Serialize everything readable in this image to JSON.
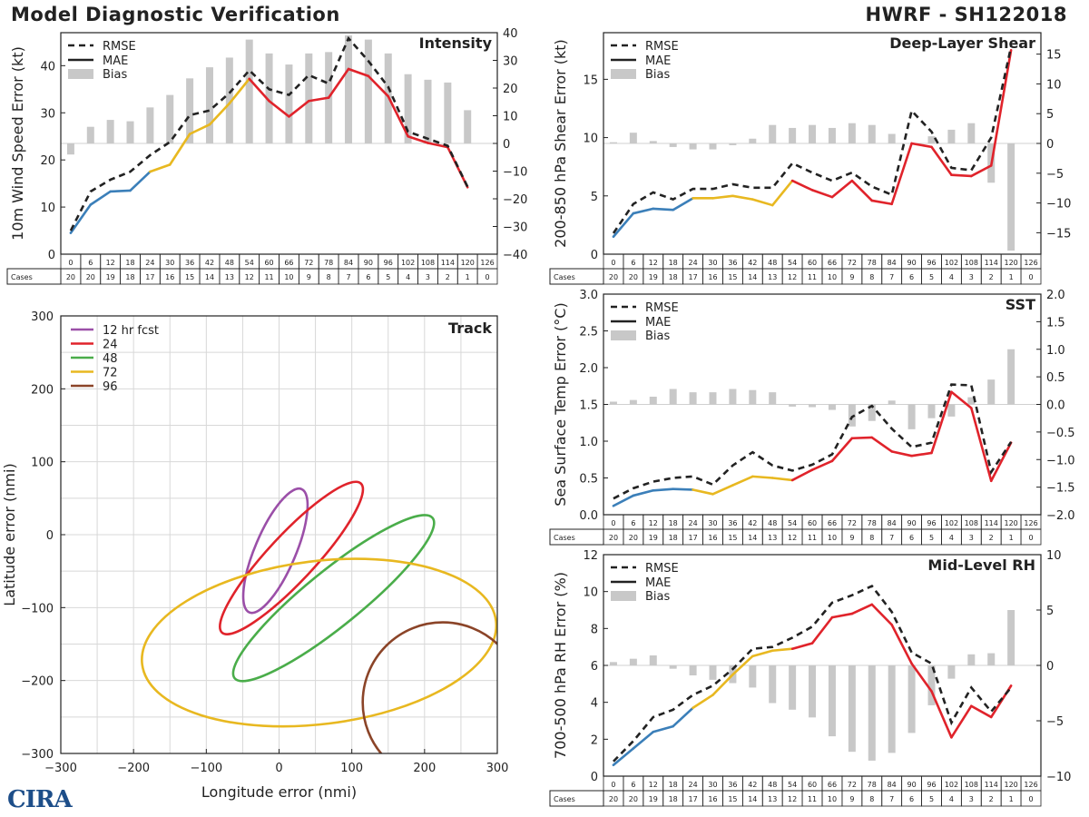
{
  "header": {
    "left": "Model Diagnostic Verification",
    "right": "HWRF - SH122018"
  },
  "logo": {
    "text": "CIRA"
  },
  "legend": {
    "rmse": "RMSE",
    "mae": "MAE",
    "bias": "Bias"
  },
  "cases_label": "Cases",
  "colors": {
    "blue": "#3b7fb9",
    "yellow": "#e8b820",
    "red": "#e0232b",
    "dash": "#222222",
    "bias": "#c8c8c8",
    "c12": "#9b4fa8",
    "c24": "#e0232b",
    "c48": "#4aad4a",
    "c72": "#e8b820",
    "c96": "#8b4428"
  },
  "chart_data": [
    {
      "id": "intensity",
      "type": "line+bar",
      "title": "Intensity",
      "ylabel": "10m Wind Speed Error (kt)",
      "leads": [
        "0",
        "6",
        "12",
        "18",
        "24",
        "30",
        "36",
        "42",
        "48",
        "54",
        "60",
        "66",
        "72",
        "78",
        "84",
        "90",
        "96",
        "102",
        "108",
        "114",
        "120",
        "126"
      ],
      "cases": [
        "20",
        "20",
        "19",
        "18",
        "17",
        "16",
        "15",
        "14",
        "13",
        "12",
        "11",
        "10",
        "9",
        "8",
        "7",
        "6",
        "5",
        "4",
        "3",
        "2",
        "1",
        "0"
      ],
      "ylim": [
        0,
        47
      ],
      "yticks": [
        "0",
        "10",
        "20",
        "30",
        "40"
      ],
      "y2lim": [
        -40,
        40
      ],
      "y2ticks": [
        "−40",
        "−30",
        "−20",
        "−10",
        "0",
        "10",
        "20",
        "30",
        "40"
      ],
      "y2vals": [
        -40,
        -30,
        -20,
        -10,
        0,
        10,
        20,
        30,
        40
      ],
      "mae": [
        4.5,
        10.5,
        13.3,
        13.5,
        17.5,
        19.0,
        25.5,
        27.5,
        32.0,
        37.2,
        32.5,
        29.2,
        32.5,
        33.2,
        39.3,
        37.8,
        33.5,
        25.0,
        23.6,
        22.7,
        14.2,
        null
      ],
      "rmse": [
        5.0,
        13.3,
        15.8,
        17.5,
        21.0,
        23.8,
        29.5,
        30.5,
        34.2,
        39.0,
        35.0,
        33.8,
        38.0,
        36.2,
        45.8,
        41.0,
        35.5,
        26.0,
        24.5,
        23.0,
        14.3,
        null
      ],
      "bias": [
        -4.0,
        6.0,
        8.5,
        8.0,
        13.0,
        17.5,
        23.5,
        27.5,
        31.0,
        37.5,
        32.5,
        28.5,
        32.5,
        33.0,
        39.0,
        37.5,
        32.5,
        25.0,
        23.0,
        22.0,
        12.0,
        null
      ]
    },
    {
      "id": "shear",
      "type": "line+bar",
      "title": "Deep-Layer Shear",
      "ylabel": "200-850 hPa Shear Error (kt)",
      "leads": [
        "0",
        "6",
        "12",
        "18",
        "24",
        "30",
        "36",
        "42",
        "48",
        "54",
        "60",
        "66",
        "72",
        "78",
        "84",
        "90",
        "96",
        "102",
        "108",
        "114",
        "120",
        "126"
      ],
      "cases": [
        "20",
        "20",
        "19",
        "18",
        "17",
        "16",
        "15",
        "14",
        "13",
        "12",
        "11",
        "10",
        "9",
        "8",
        "7",
        "6",
        "5",
        "4",
        "3",
        "2",
        "1",
        "0"
      ],
      "ylim": [
        0,
        19
      ],
      "yticks": [
        "0",
        "5",
        "10",
        "15"
      ],
      "y2lim": [
        -18.6,
        18.6
      ],
      "y2ticks": [
        "−15",
        "−10",
        "−5",
        "0",
        "5",
        "10",
        "15"
      ],
      "y2vals": [
        -15,
        -10,
        -5,
        0,
        5,
        10,
        15
      ],
      "mae": [
        1.5,
        3.5,
        3.9,
        3.8,
        4.8,
        4.8,
        5.0,
        4.7,
        4.2,
        6.3,
        5.5,
        4.9,
        6.3,
        4.6,
        4.3,
        9.5,
        9.2,
        6.8,
        6.7,
        7.6,
        17.5,
        null
      ],
      "rmse": [
        1.8,
        4.3,
        5.3,
        4.7,
        5.6,
        5.6,
        6.0,
        5.7,
        5.7,
        7.8,
        7.0,
        6.3,
        7.0,
        5.8,
        5.1,
        12.3,
        10.5,
        7.4,
        7.2,
        10.0,
        17.8,
        null
      ],
      "bias": [
        0.2,
        1.8,
        0.4,
        -0.6,
        -1.0,
        -1.0,
        -0.3,
        0.8,
        3.1,
        2.6,
        3.1,
        2.6,
        3.4,
        3.1,
        1.6,
        null,
        1.2,
        2.3,
        3.4,
        -6.6,
        -18.0,
        null
      ]
    },
    {
      "id": "sst",
      "type": "line+bar",
      "title": "SST",
      "ylabel": "Sea Surface Temp Error (°C)",
      "leads": [
        "0",
        "6",
        "12",
        "18",
        "24",
        "30",
        "36",
        "42",
        "48",
        "54",
        "60",
        "66",
        "72",
        "78",
        "84",
        "90",
        "96",
        "102",
        "108",
        "114",
        "120",
        "126"
      ],
      "cases": [
        "20",
        "20",
        "19",
        "18",
        "17",
        "16",
        "15",
        "14",
        "13",
        "12",
        "11",
        "10",
        "9",
        "8",
        "7",
        "6",
        "5",
        "4",
        "3",
        "2",
        "1",
        "0"
      ],
      "ylim": [
        0,
        3.0
      ],
      "yticks": [
        "0.0",
        "0.5",
        "1.0",
        "1.5",
        "2.0",
        "2.5",
        "3.0"
      ],
      "y2lim": [
        -2.0,
        2.0
      ],
      "y2ticks": [
        "−2.0",
        "−1.5",
        "−1.0",
        "−0.5",
        "0.0",
        "0.5",
        "1.0",
        "1.5",
        "2.0"
      ],
      "y2vals": [
        -2.0,
        -1.5,
        -1.0,
        -0.5,
        0.0,
        0.5,
        1.0,
        1.5,
        2.0
      ],
      "mae": [
        0.12,
        0.26,
        0.33,
        0.35,
        0.34,
        0.28,
        0.4,
        0.52,
        0.5,
        0.47,
        0.61,
        0.73,
        1.04,
        1.05,
        0.86,
        0.8,
        0.84,
        1.67,
        1.45,
        0.46,
        0.98,
        null
      ],
      "rmse": [
        0.22,
        0.36,
        0.45,
        0.5,
        0.52,
        0.41,
        0.67,
        0.85,
        0.67,
        0.6,
        0.68,
        0.82,
        1.33,
        1.48,
        1.17,
        0.92,
        0.98,
        1.77,
        1.76,
        0.58,
        0.99,
        null
      ],
      "bias": [
        0.05,
        0.08,
        0.14,
        0.28,
        0.22,
        0.22,
        0.28,
        0.26,
        0.22,
        -0.04,
        -0.05,
        -0.1,
        -0.4,
        -0.3,
        0.07,
        -0.45,
        -0.25,
        -0.22,
        0.13,
        0.45,
        1.0,
        null
      ]
    },
    {
      "id": "rh",
      "type": "line+bar",
      "title": "Mid-Level RH",
      "ylabel": "700-500 hPa RH Error (%)",
      "leads": [
        "0",
        "6",
        "12",
        "18",
        "24",
        "30",
        "36",
        "42",
        "48",
        "54",
        "60",
        "66",
        "72",
        "78",
        "84",
        "90",
        "96",
        "102",
        "108",
        "114",
        "120",
        "126"
      ],
      "cases": [
        "20",
        "20",
        "19",
        "18",
        "17",
        "16",
        "15",
        "14",
        "13",
        "12",
        "11",
        "10",
        "9",
        "8",
        "7",
        "6",
        "5",
        "4",
        "3",
        "2",
        "1",
        "0"
      ],
      "ylim": [
        0,
        12
      ],
      "yticks": [
        "0",
        "2",
        "4",
        "6",
        "8",
        "10",
        "12"
      ],
      "y2lim": [
        -10,
        10
      ],
      "y2ticks": [
        "−10",
        "−5",
        "0",
        "5",
        "10"
      ],
      "y2vals": [
        -10,
        -5,
        0,
        5,
        10
      ],
      "mae": [
        0.6,
        1.5,
        2.4,
        2.7,
        3.7,
        4.4,
        5.5,
        6.5,
        6.8,
        6.9,
        7.2,
        8.6,
        8.8,
        9.3,
        8.2,
        6.1,
        4.6,
        2.1,
        3.8,
        3.2,
        4.9,
        null
      ],
      "rmse": [
        0.8,
        1.9,
        3.2,
        3.6,
        4.4,
        4.9,
        5.8,
        6.9,
        7.0,
        7.5,
        8.1,
        9.4,
        9.8,
        10.3,
        8.9,
        6.7,
        6.1,
        2.9,
        4.8,
        3.5,
        4.8,
        null
      ],
      "bias": [
        0.3,
        0.6,
        0.9,
        -0.3,
        -0.9,
        -1.3,
        -1.6,
        -2.0,
        -3.4,
        -4.0,
        -4.7,
        -6.4,
        -7.8,
        -8.6,
        -7.9,
        -6.1,
        -3.6,
        -1.2,
        1.0,
        1.1,
        5.0,
        null
      ]
    },
    {
      "id": "track",
      "type": "ellipse",
      "title": "Track",
      "xlabel": "Longitude error (nmi)",
      "ylabel": "Latitude error (nmi)",
      "xlim": [
        -300,
        300
      ],
      "ylim": [
        -300,
        300
      ],
      "xticks": [
        "−300",
        "−200",
        "−100",
        "0",
        "100",
        "200",
        "300"
      ],
      "xvals": [
        -300,
        -200,
        -100,
        0,
        100,
        200,
        300
      ],
      "yticks": [
        "−300",
        "−200",
        "−100",
        "0",
        "100",
        "200",
        "300"
      ],
      "yvals": [
        -300,
        -200,
        -100,
        0,
        100,
        200,
        300
      ],
      "series": [
        {
          "name": "12 hr fcst",
          "key": "c12",
          "cx": -5,
          "cy": -22,
          "a": 92,
          "b": 28,
          "angle": -67
        },
        {
          "name": "24",
          "key": "c24",
          "cx": 17,
          "cy": -32,
          "a": 140,
          "b": 32,
          "angle": -47
        },
        {
          "name": "48",
          "key": "c48",
          "cx": 75,
          "cy": -87,
          "a": 175,
          "b": 38,
          "angle": -39
        },
        {
          "name": "72",
          "key": "c72",
          "cx": 55,
          "cy": -148,
          "a": 245,
          "b": 112,
          "angle": -7
        },
        {
          "name": "96",
          "key": "c96",
          "cx": 225,
          "cy": -230,
          "a": 110,
          "b": 110,
          "angle": 0
        }
      ]
    }
  ]
}
